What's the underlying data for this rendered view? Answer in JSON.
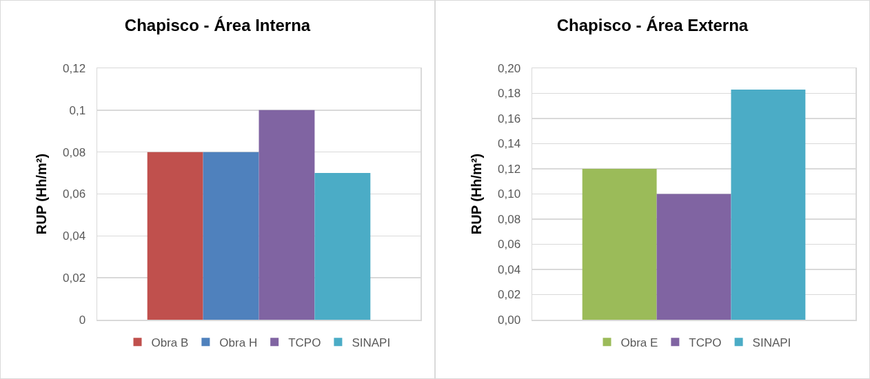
{
  "chart_data": [
    {
      "type": "bar",
      "title": "Chapisco - Área Interna",
      "ylabel": "RUP (Hh/m²)",
      "categories": [
        null
      ],
      "series": [
        {
          "name": "Obra B",
          "color": "#c0504d",
          "values": [
            0.08
          ]
        },
        {
          "name": "Obra H",
          "color": "#4f81bd",
          "values": [
            0.08
          ]
        },
        {
          "name": "TCPO",
          "color": "#8064a2",
          "values": [
            0.1
          ]
        },
        {
          "name": "SINAPI",
          "color": "#4bacc6",
          "values": [
            0.07
          ]
        }
      ],
      "ylim": [
        0,
        0.12
      ],
      "yticks": [
        0,
        {
          "value": 0.02,
          "label": "0,02"
        },
        {
          "value": 0.04,
          "label": "0,04"
        },
        {
          "value": 0.06,
          "label": "0,06"
        },
        {
          "value": 0.08,
          "label": "0,08"
        },
        {
          "value": 0.1,
          "label": "0,1"
        },
        {
          "value": 0.12,
          "label": "0,12"
        }
      ],
      "grid": "y",
      "legend": "bottom"
    },
    {
      "type": "bar",
      "title": "Chapisco - Área Externa",
      "ylabel": "RUP (Hh/m²)",
      "categories": [
        null
      ],
      "series": [
        {
          "name": "Obra E",
          "color": "#9bbb59",
          "values": [
            0.12
          ]
        },
        {
          "name": "TCPO",
          "color": "#8064a2",
          "values": [
            0.1
          ]
        },
        {
          "name": "SINAPI",
          "color": "#4bacc6",
          "values": [
            0.183
          ]
        }
      ],
      "ylim": [
        0,
        0.2
      ],
      "yticks": [
        {
          "value": 0,
          "label": "0,00"
        },
        {
          "value": 0.02,
          "label": "0,02"
        },
        {
          "value": 0.04,
          "label": "0,04"
        },
        {
          "value": 0.06,
          "label": "0,06"
        },
        {
          "value": 0.08,
          "label": "0,08"
        },
        {
          "value": 0.1,
          "label": "0,10"
        },
        {
          "value": 0.12,
          "label": "0,12"
        },
        {
          "value": 0.14,
          "label": "0,14"
        },
        {
          "value": 0.16,
          "label": "0,16"
        },
        {
          "value": 0.18,
          "label": "0,18"
        },
        {
          "value": 0.2,
          "label": "0,20"
        }
      ],
      "grid": "y",
      "legend": "bottom"
    }
  ]
}
